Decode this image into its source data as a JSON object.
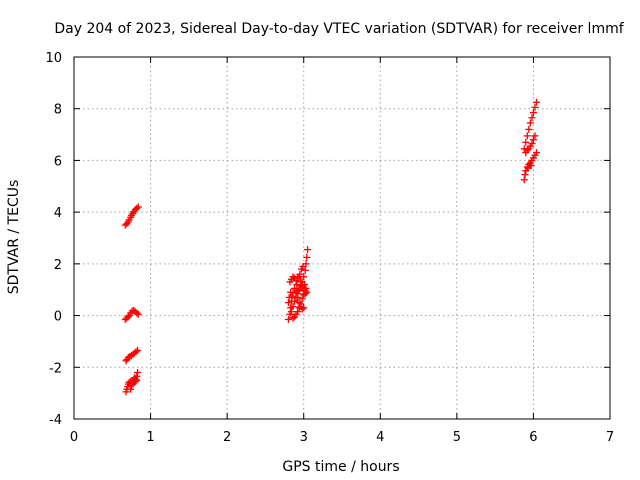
{
  "chart_data": {
    "type": "scatter",
    "title": "Day 204 of 2023, Sidereal Day-to-day VTEC variation (SDTVAR) for receiver lmmf",
    "xlabel": "GPS time / hours",
    "ylabel": "SDTVAR / TECUs",
    "xlim": [
      0,
      7
    ],
    "ylim": [
      -4,
      10
    ],
    "xticks": [
      "0",
      "1",
      "2",
      "3",
      "4",
      "5",
      "6",
      "7"
    ],
    "yticks": [
      "-4",
      "-2",
      "0",
      "2",
      "4",
      "6",
      "8",
      "10"
    ],
    "grid": true,
    "marker_color": "#ff0000",
    "series": [
      {
        "marker": "plus",
        "points": [
          [
            0.67,
            3.5
          ],
          [
            0.69,
            3.55
          ],
          [
            0.71,
            3.62
          ],
          [
            0.72,
            3.7
          ],
          [
            0.74,
            3.8
          ],
          [
            0.75,
            3.88
          ],
          [
            0.77,
            3.95
          ],
          [
            0.78,
            4.02
          ],
          [
            0.8,
            4.1
          ],
          [
            0.82,
            4.15
          ],
          [
            0.84,
            4.2
          ],
          [
            0.67,
            -0.15
          ],
          [
            0.69,
            -0.1
          ],
          [
            0.71,
            -0.05
          ],
          [
            0.72,
            0.0
          ],
          [
            0.74,
            0.1
          ],
          [
            0.76,
            0.18
          ],
          [
            0.78,
            0.2
          ],
          [
            0.8,
            0.15
          ],
          [
            0.82,
            0.1
          ],
          [
            0.84,
            0.05
          ],
          [
            0.68,
            -1.75
          ],
          [
            0.69,
            -1.7
          ],
          [
            0.71,
            -1.62
          ],
          [
            0.73,
            -1.58
          ],
          [
            0.75,
            -1.55
          ],
          [
            0.77,
            -1.5
          ],
          [
            0.79,
            -1.45
          ],
          [
            0.81,
            -1.4
          ],
          [
            0.83,
            -1.35
          ],
          [
            0.68,
            -2.95
          ],
          [
            0.69,
            -2.85
          ],
          [
            0.7,
            -2.75
          ],
          [
            0.71,
            -2.65
          ],
          [
            0.72,
            -2.58
          ],
          [
            0.74,
            -2.55
          ],
          [
            0.76,
            -2.6
          ],
          [
            0.78,
            -2.5
          ],
          [
            0.79,
            -2.4
          ],
          [
            0.8,
            -2.45
          ],
          [
            0.82,
            -2.35
          ],
          [
            0.83,
            -2.2
          ],
          [
            0.74,
            -2.85
          ],
          [
            0.75,
            -2.7
          ],
          [
            0.77,
            -2.65
          ],
          [
            0.8,
            -2.55
          ],
          [
            0.82,
            -2.5
          ],
          [
            2.8,
            -0.15
          ],
          [
            2.82,
            0.05
          ],
          [
            2.83,
            0.3
          ],
          [
            2.84,
            0.55
          ],
          [
            2.85,
            0.75
          ],
          [
            2.86,
            0.9
          ],
          [
            2.88,
            1.05
          ],
          [
            2.9,
            0.9
          ],
          [
            2.92,
            0.7
          ],
          [
            2.94,
            0.5
          ],
          [
            2.96,
            0.35
          ],
          [
            2.98,
            0.25
          ],
          [
            3.0,
            0.3
          ],
          [
            2.82,
            1.3
          ],
          [
            2.84,
            1.4
          ],
          [
            2.86,
            1.5
          ],
          [
            2.88,
            1.45
          ],
          [
            2.9,
            1.35
          ],
          [
            2.92,
            1.45
          ],
          [
            2.94,
            1.5
          ],
          [
            2.96,
            1.3
          ],
          [
            2.98,
            1.1
          ],
          [
            3.0,
            0.95
          ],
          [
            3.02,
            0.85
          ],
          [
            3.04,
            0.9
          ],
          [
            2.86,
            -0.1
          ],
          [
            2.88,
            -0.05
          ],
          [
            2.9,
            0.05
          ],
          [
            2.92,
            0.15
          ],
          [
            2.94,
            0.3
          ],
          [
            2.96,
            0.45
          ],
          [
            2.98,
            0.65
          ],
          [
            3.0,
            0.8
          ],
          [
            3.02,
            0.95
          ],
          [
            2.84,
            0.15
          ],
          [
            2.86,
            0.35
          ],
          [
            2.88,
            0.55
          ],
          [
            2.9,
            0.7
          ],
          [
            2.92,
            0.85
          ],
          [
            2.94,
            1.0
          ],
          [
            2.96,
            1.15
          ],
          [
            2.98,
            1.3
          ],
          [
            3.0,
            1.5
          ],
          [
            3.02,
            1.75
          ],
          [
            3.03,
            2.0
          ],
          [
            3.04,
            2.25
          ],
          [
            3.05,
            2.55
          ],
          [
            2.8,
            0.5
          ],
          [
            2.81,
            0.7
          ],
          [
            2.83,
            0.9
          ],
          [
            2.95,
            1.6
          ],
          [
            2.97,
            1.8
          ],
          [
            2.99,
            1.9
          ],
          [
            3.01,
            1.2
          ],
          [
            3.03,
            1.05
          ],
          [
            2.93,
            0.95
          ],
          [
            2.91,
            1.2
          ],
          [
            5.88,
            6.45
          ],
          [
            5.9,
            6.7
          ],
          [
            5.92,
            6.95
          ],
          [
            5.94,
            7.2
          ],
          [
            5.96,
            7.45
          ],
          [
            5.98,
            7.65
          ],
          [
            6.0,
            7.85
          ],
          [
            6.02,
            8.05
          ],
          [
            6.04,
            8.25
          ],
          [
            5.9,
            6.3
          ],
          [
            5.92,
            6.4
          ],
          [
            5.94,
            6.45
          ],
          [
            5.96,
            6.55
          ],
          [
            5.98,
            6.65
          ],
          [
            6.0,
            6.8
          ],
          [
            6.02,
            6.95
          ],
          [
            5.88,
            5.25
          ],
          [
            5.89,
            5.45
          ],
          [
            5.9,
            5.6
          ],
          [
            5.92,
            5.75
          ],
          [
            5.94,
            5.85
          ],
          [
            5.96,
            5.9
          ],
          [
            5.98,
            6.0
          ],
          [
            6.0,
            6.1
          ],
          [
            6.02,
            6.2
          ],
          [
            6.04,
            6.3
          ],
          [
            5.93,
            5.7
          ],
          [
            5.97,
            5.8
          ]
        ]
      }
    ]
  }
}
